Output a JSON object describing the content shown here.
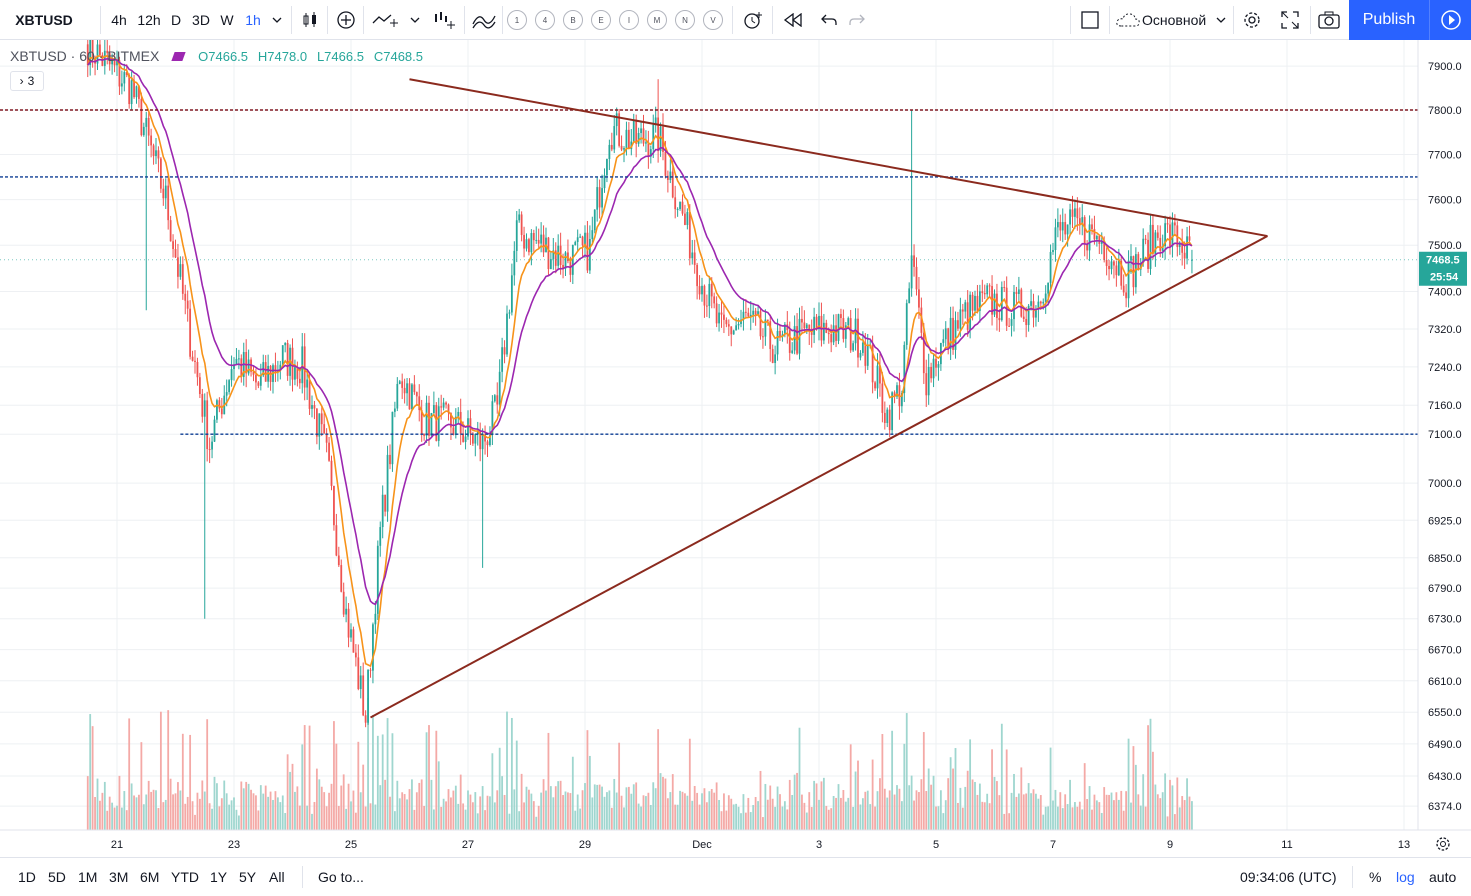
{
  "toolbar": {
    "symbol": "XBTUSD",
    "intervals": [
      "4h",
      "12h",
      "D",
      "3D",
      "W",
      "1h"
    ],
    "active_interval": "1h",
    "event_markers": [
      "1",
      "4",
      "B",
      "E",
      "I",
      "M",
      "N",
      "V"
    ],
    "layout_name": "Основной",
    "publish_label": "Publish",
    "icons": [
      "candles-icon",
      "add-indicator-icon",
      "line-tool-icon",
      "compare-icon",
      "indicators-icon",
      "alert-icon",
      "replay-icon",
      "undo-icon",
      "redo-icon",
      "checkbox-icon",
      "cloud-icon",
      "settings-icon",
      "fullscreen-icon",
      "camera-icon",
      "play-icon"
    ]
  },
  "legend": {
    "title": "XBTUSD · 60 · BITMEX",
    "open": "O7466.5",
    "high": "H7478.0",
    "low": "L7466.5",
    "close": "C7468.5",
    "collapsed_count": "3"
  },
  "chart_data": {
    "type": "candlestick",
    "symbol": "XBTUSD",
    "exchange": "BITMEX",
    "interval": "60",
    "scale": "log",
    "y_range": [
      6330,
      7960
    ],
    "x_ticks": [
      "21",
      "23",
      "25",
      "27",
      "29",
      "Dec",
      "3",
      "5",
      "7",
      "9",
      "11",
      "13"
    ],
    "y_ticks": [
      7900,
      7800,
      7700,
      7600,
      7500,
      7400,
      7320,
      7240,
      7160,
      7100,
      7000,
      6925,
      6850,
      6790,
      6730,
      6670,
      6610,
      6550,
      6490,
      6430,
      6374
    ],
    "price_path_x": [
      "20 Nov 12:00",
      "21 Nov 06:00",
      "21 Nov 20:00",
      "22 Nov 06:00",
      "22 Nov 14:00",
      "23 Nov 00:00",
      "23 Nov 10:00",
      "23 Nov 20:00",
      "24 Nov 04:00",
      "24 Nov 14:00",
      "24 Nov 22:00",
      "25 Nov 06:00",
      "25 Nov 12:00",
      "25 Nov 20:00",
      "26 Nov 06:00",
      "26 Nov 18:00",
      "27 Nov 06:00",
      "27 Nov 12:00",
      "27 Nov 20:00",
      "28 Nov 06:00",
      "28 Nov 16:00",
      "29 Nov 02:00",
      "29 Nov 10:00",
      "29 Nov 20:00",
      "30 Nov 06:00",
      "30 Nov 14:00",
      "1 Dec 00:00",
      "1 Dec 08:00",
      "1 Dec 18:00",
      "2 Dec 06:00",
      "2 Dec 18:00",
      "3 Dec 06:00",
      "3 Dec 18:00",
      "4 Dec 04:00",
      "4 Dec 10:00",
      "4 Dec 14:00",
      "4 Dec 20:00",
      "5 Dec 02:00",
      "5 Dec 12:00",
      "5 Dec 22:00",
      "6 Dec 08:00",
      "6 Dec 18:00",
      "7 Dec 02:00",
      "7 Dec 10:00",
      "7 Dec 20:00",
      "8 Dec 06:00",
      "8 Dec 12:00",
      "8 Dec 20:00",
      "9 Dec 04:00",
      "9 Dec 09:00"
    ],
    "price_path_y": [
      7950,
      7850,
      7600,
      7300,
      7080,
      7260,
      7200,
      7260,
      7240,
      7050,
      6740,
      6540,
      6900,
      7230,
      7130,
      7120,
      7080,
      7150,
      7530,
      7500,
      7470,
      7490,
      7760,
      7730,
      7740,
      7600,
      7420,
      7310,
      7340,
      7280,
      7310,
      7320,
      7300,
      7140,
      7200,
      7470,
      7220,
      7280,
      7350,
      7380,
      7360,
      7380,
      7530,
      7540,
      7510,
      7430,
      7470,
      7530,
      7510,
      7468.5
    ],
    "candle_range_note": "",
    "horizontal_levels": [
      {
        "price": 7800.0,
        "label": "7800.0",
        "color": "#801922",
        "style": "dotted"
      },
      {
        "price": 7650.0,
        "label": "7650.0",
        "color": "#0d3d94",
        "style": "dotted"
      },
      {
        "price": 7100.0,
        "label": "7100.0",
        "color": "#0d3d94",
        "style": "dotted"
      }
    ],
    "trendlines": [
      {
        "name": "upper",
        "from": {
          "x": "26 Nov 00:00",
          "y": 7870
        },
        "to": {
          "x": "10 Dec 16:00",
          "y": 7520
        },
        "color": "#8b2a1e"
      },
      {
        "name": "lower",
        "from": {
          "x": "25 Nov 08:00",
          "y": 6540
        },
        "to": {
          "x": "10 Dec 16:00",
          "y": 7520
        },
        "color": "#8b2a1e"
      }
    ],
    "last_price": {
      "value": "7468.5",
      "countdown": "25:54",
      "color": "#26a69a"
    },
    "moving_averages": [
      {
        "color": "#f7931a"
      },
      {
        "color": "#9c27b0"
      }
    ],
    "colors": {
      "up": "#26a69a",
      "down": "#ef5350",
      "volume_up": "#9fd6cf",
      "volume_down": "#f4a9a6",
      "grid": "#eef0f3"
    }
  },
  "bottombar": {
    "ranges": [
      "1D",
      "5D",
      "1M",
      "3M",
      "6M",
      "YTD",
      "1Y",
      "5Y",
      "All"
    ],
    "goto_label": "Go to...",
    "time": "09:34:06 (UTC)",
    "percent_label": "%",
    "log_label": "log",
    "auto_label": "auto"
  }
}
